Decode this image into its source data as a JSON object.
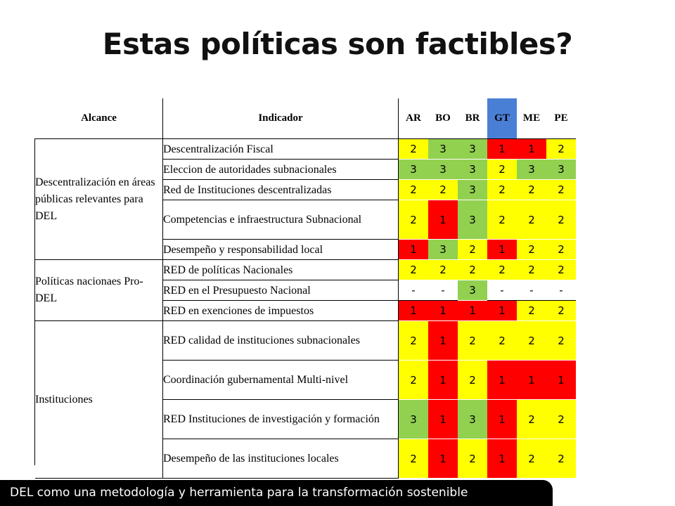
{
  "title": "Estas políticas son factibles?",
  "colors": {
    "high": "#92d050",
    "mid": "#ffff00",
    "low": "#ff0000",
    "gt_header": "#4a7fd6"
  },
  "table": {
    "headers": {
      "alcance": "Alcance",
      "indicador": "Indicador",
      "countries": [
        "AR",
        "BO",
        "BR",
        "GT",
        "ME",
        "PE"
      ]
    },
    "groups": [
      {
        "alcance": "Descentralización en áreas públicas relevantes para DEL",
        "rows": [
          {
            "indicador": "Descentralización Fiscal",
            "values": [
              "2",
              "3",
              "3",
              "1",
              "1",
              "2"
            ]
          },
          {
            "indicador": "Eleccion de autoridades subnacionales",
            "values": [
              "3",
              "3",
              "3",
              "2",
              "3",
              "3"
            ]
          },
          {
            "indicador": "Red de Instituciones descentralizadas",
            "values": [
              "2",
              "2",
              "3",
              "2",
              "2",
              "2"
            ]
          },
          {
            "indicador": "Competencias e infraestructura Subnacional",
            "values": [
              "2",
              "1",
              "3",
              "2",
              "2",
              "2"
            ]
          },
          {
            "indicador": "Desempeño y responsabilidad local",
            "values": [
              "1",
              "3",
              "2",
              "1",
              "2",
              "2"
            ]
          }
        ]
      },
      {
        "alcance": "Políticas nacionaes Pro-DEL",
        "rows": [
          {
            "indicador": "RED de políticas Nacionales",
            "values": [
              "2",
              "2",
              "2",
              "2",
              "2",
              "2"
            ]
          },
          {
            "indicador": "RED en el Presupuesto Nacional",
            "values": [
              "-",
              "-",
              "3",
              "-",
              "-",
              "-"
            ]
          },
          {
            "indicador": "RED en exenciones de impuestos",
            "values": [
              "1",
              "1",
              "1",
              "1",
              "2",
              "2"
            ]
          }
        ]
      },
      {
        "alcance": "Instituciones",
        "rows": [
          {
            "indicador": "RED calidad de instituciones subnacionales",
            "values": [
              "2",
              "1",
              "2",
              "2",
              "2",
              "2"
            ]
          },
          {
            "indicador": "Coordinación gubernamental Multi-nivel",
            "values": [
              "2",
              "1",
              "2",
              "1",
              "1",
              "1"
            ]
          },
          {
            "indicador": "RED Instituciones de investigación y formación",
            "values": [
              "3",
              "1",
              "3",
              "1",
              "2",
              "2"
            ]
          },
          {
            "indicador": "Desempeño de las instituciones locales",
            "values": [
              "2",
              "1",
              "2",
              "1",
              "2",
              "2"
            ]
          }
        ]
      }
    ]
  },
  "caption": "DEL como una metodología y herramienta para la transformación sostenible"
}
